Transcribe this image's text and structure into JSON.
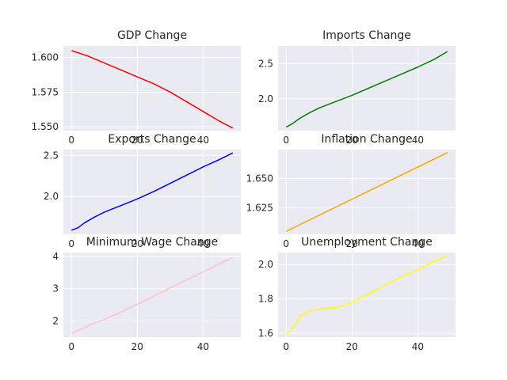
{
  "chart_data": [
    {
      "type": "line",
      "title": "GDP Change",
      "color": "#ff0000",
      "xlim": [
        -2.45,
        51.45
      ],
      "ylim": [
        1.5472,
        1.6083
      ],
      "xticks": [
        0,
        20,
        40
      ],
      "yticks": [
        1.55,
        1.575,
        1.6
      ],
      "ytick_labels": [
        "1.550",
        "1.575",
        "1.600"
      ],
      "x": [
        0,
        5,
        10,
        15,
        20,
        25,
        30,
        35,
        40,
        45,
        49
      ],
      "y": [
        1.605,
        1.601,
        1.596,
        1.591,
        1.586,
        1.581,
        1.575,
        1.568,
        1.561,
        1.554,
        1.549
      ]
    },
    {
      "type": "line",
      "title": "Imports Change",
      "color": "#008000",
      "xlim": [
        -2.45,
        51.45
      ],
      "ylim": [
        1.55,
        2.75
      ],
      "xticks": [
        0,
        20,
        40
      ],
      "yticks": [
        2.0,
        2.5
      ],
      "ytick_labels": [
        "2.0",
        "2.5"
      ],
      "x": [
        0,
        2,
        4,
        7,
        10,
        15,
        20,
        25,
        30,
        35,
        40,
        45,
        49
      ],
      "y": [
        1.6,
        1.65,
        1.72,
        1.8,
        1.87,
        1.96,
        2.05,
        2.15,
        2.25,
        2.35,
        2.45,
        2.56,
        2.67
      ]
    },
    {
      "type": "line",
      "title": "Exports Change",
      "color": "#0000ff",
      "xlim": [
        -2.45,
        51.45
      ],
      "ylim": [
        1.54,
        2.57
      ],
      "xticks": [
        0,
        20,
        40
      ],
      "yticks": [
        2.0,
        2.5
      ],
      "ytick_labels": [
        "2.0",
        "2.5"
      ],
      "x": [
        0,
        2,
        4,
        7,
        10,
        15,
        20,
        25,
        30,
        35,
        40,
        45,
        49
      ],
      "y": [
        1.59,
        1.62,
        1.68,
        1.75,
        1.81,
        1.89,
        1.97,
        2.06,
        2.16,
        2.26,
        2.36,
        2.45,
        2.53
      ]
    },
    {
      "type": "line",
      "title": "Inflation Change",
      "color": "#ffa500",
      "xlim": [
        -2.45,
        51.45
      ],
      "ylim": [
        1.6025,
        1.6745
      ],
      "xticks": [
        0,
        20,
        40
      ],
      "yticks": [
        1.625,
        1.65
      ],
      "ytick_labels": [
        "1.625",
        "1.650"
      ],
      "x": [
        0,
        49
      ],
      "y": [
        1.605,
        1.672
      ]
    },
    {
      "type": "line",
      "title": "Minimum Wage Change",
      "color": "#ffc0cb",
      "xlim": [
        -2.45,
        51.45
      ],
      "ylim": [
        1.5,
        4.12
      ],
      "xticks": [
        0,
        20,
        40
      ],
      "yticks": [
        2,
        3,
        4
      ],
      "ytick_labels": [
        "2",
        "3",
        "4"
      ],
      "x": [
        0,
        3,
        6,
        10,
        15,
        20,
        25,
        30,
        35,
        40,
        45,
        49
      ],
      "y": [
        1.62,
        1.74,
        1.9,
        2.05,
        2.28,
        2.52,
        2.77,
        3.03,
        3.28,
        3.52,
        3.77,
        3.97
      ]
    },
    {
      "type": "line",
      "title": "Unemployment Change",
      "color": "#ffff00",
      "xlim": [
        -2.45,
        51.45
      ],
      "ylim": [
        1.577,
        2.07
      ],
      "xticks": [
        0,
        20,
        40
      ],
      "yticks": [
        1.6,
        1.8,
        2.0
      ],
      "ytick_labels": [
        "1.6",
        "1.8",
        "2.0"
      ],
      "x": [
        0,
        1,
        2,
        3,
        4,
        5,
        6,
        7,
        8,
        10,
        12,
        15,
        18,
        20,
        25,
        30,
        35,
        40,
        45,
        49
      ],
      "y": [
        1.6,
        1.61,
        1.63,
        1.66,
        1.69,
        1.71,
        1.72,
        1.73,
        1.735,
        1.74,
        1.745,
        1.75,
        1.765,
        1.78,
        1.83,
        1.88,
        1.93,
        1.97,
        2.02,
        2.05
      ]
    }
  ]
}
